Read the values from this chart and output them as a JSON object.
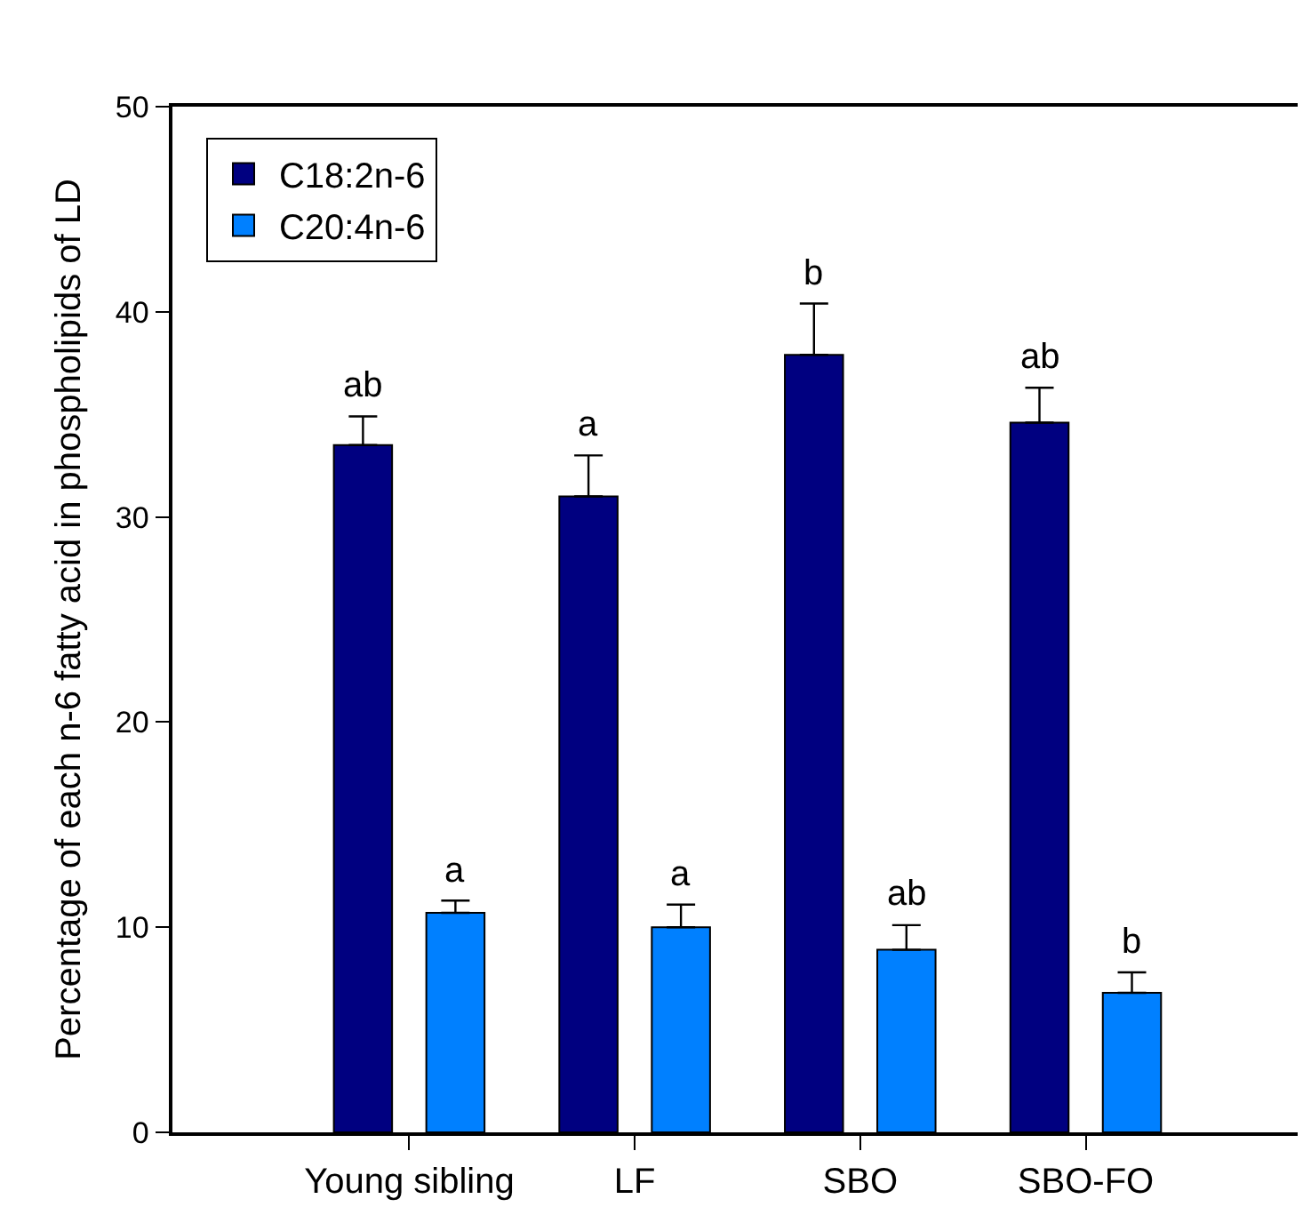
{
  "chart_data": {
    "type": "bar",
    "ylabel": "Percentage of each n-6 fatty acid in phospholipids of LD",
    "categories": [
      "Young sibling",
      "LF",
      "SBO",
      "SBO-FO"
    ],
    "series": [
      {
        "name": "C18:2n-6",
        "color": "#000080",
        "values": [
          33.5,
          31.0,
          37.9,
          34.6
        ],
        "errors": [
          [
            33.5,
            34.9
          ],
          [
            31.0,
            33.0
          ],
          [
            37.9,
            40.4
          ],
          [
            34.6,
            36.3
          ]
        ]
      },
      {
        "name": "C20:4n-6",
        "color": "#0080ff",
        "values": [
          10.7,
          10.0,
          8.9,
          6.8
        ],
        "errors": [
          [
            10.7,
            11.3
          ],
          [
            10.0,
            11.1
          ],
          [
            8.9,
            10.1
          ],
          [
            6.8,
            7.8
          ]
        ]
      }
    ],
    "annotations": [
      "ab",
      "a",
      "b",
      "ab",
      "a",
      "a",
      "ab",
      "b"
    ],
    "ylim": [
      0,
      50
    ],
    "yticks": [
      0,
      10,
      20,
      30,
      40,
      50
    ],
    "grid": false,
    "legend": "top left"
  }
}
